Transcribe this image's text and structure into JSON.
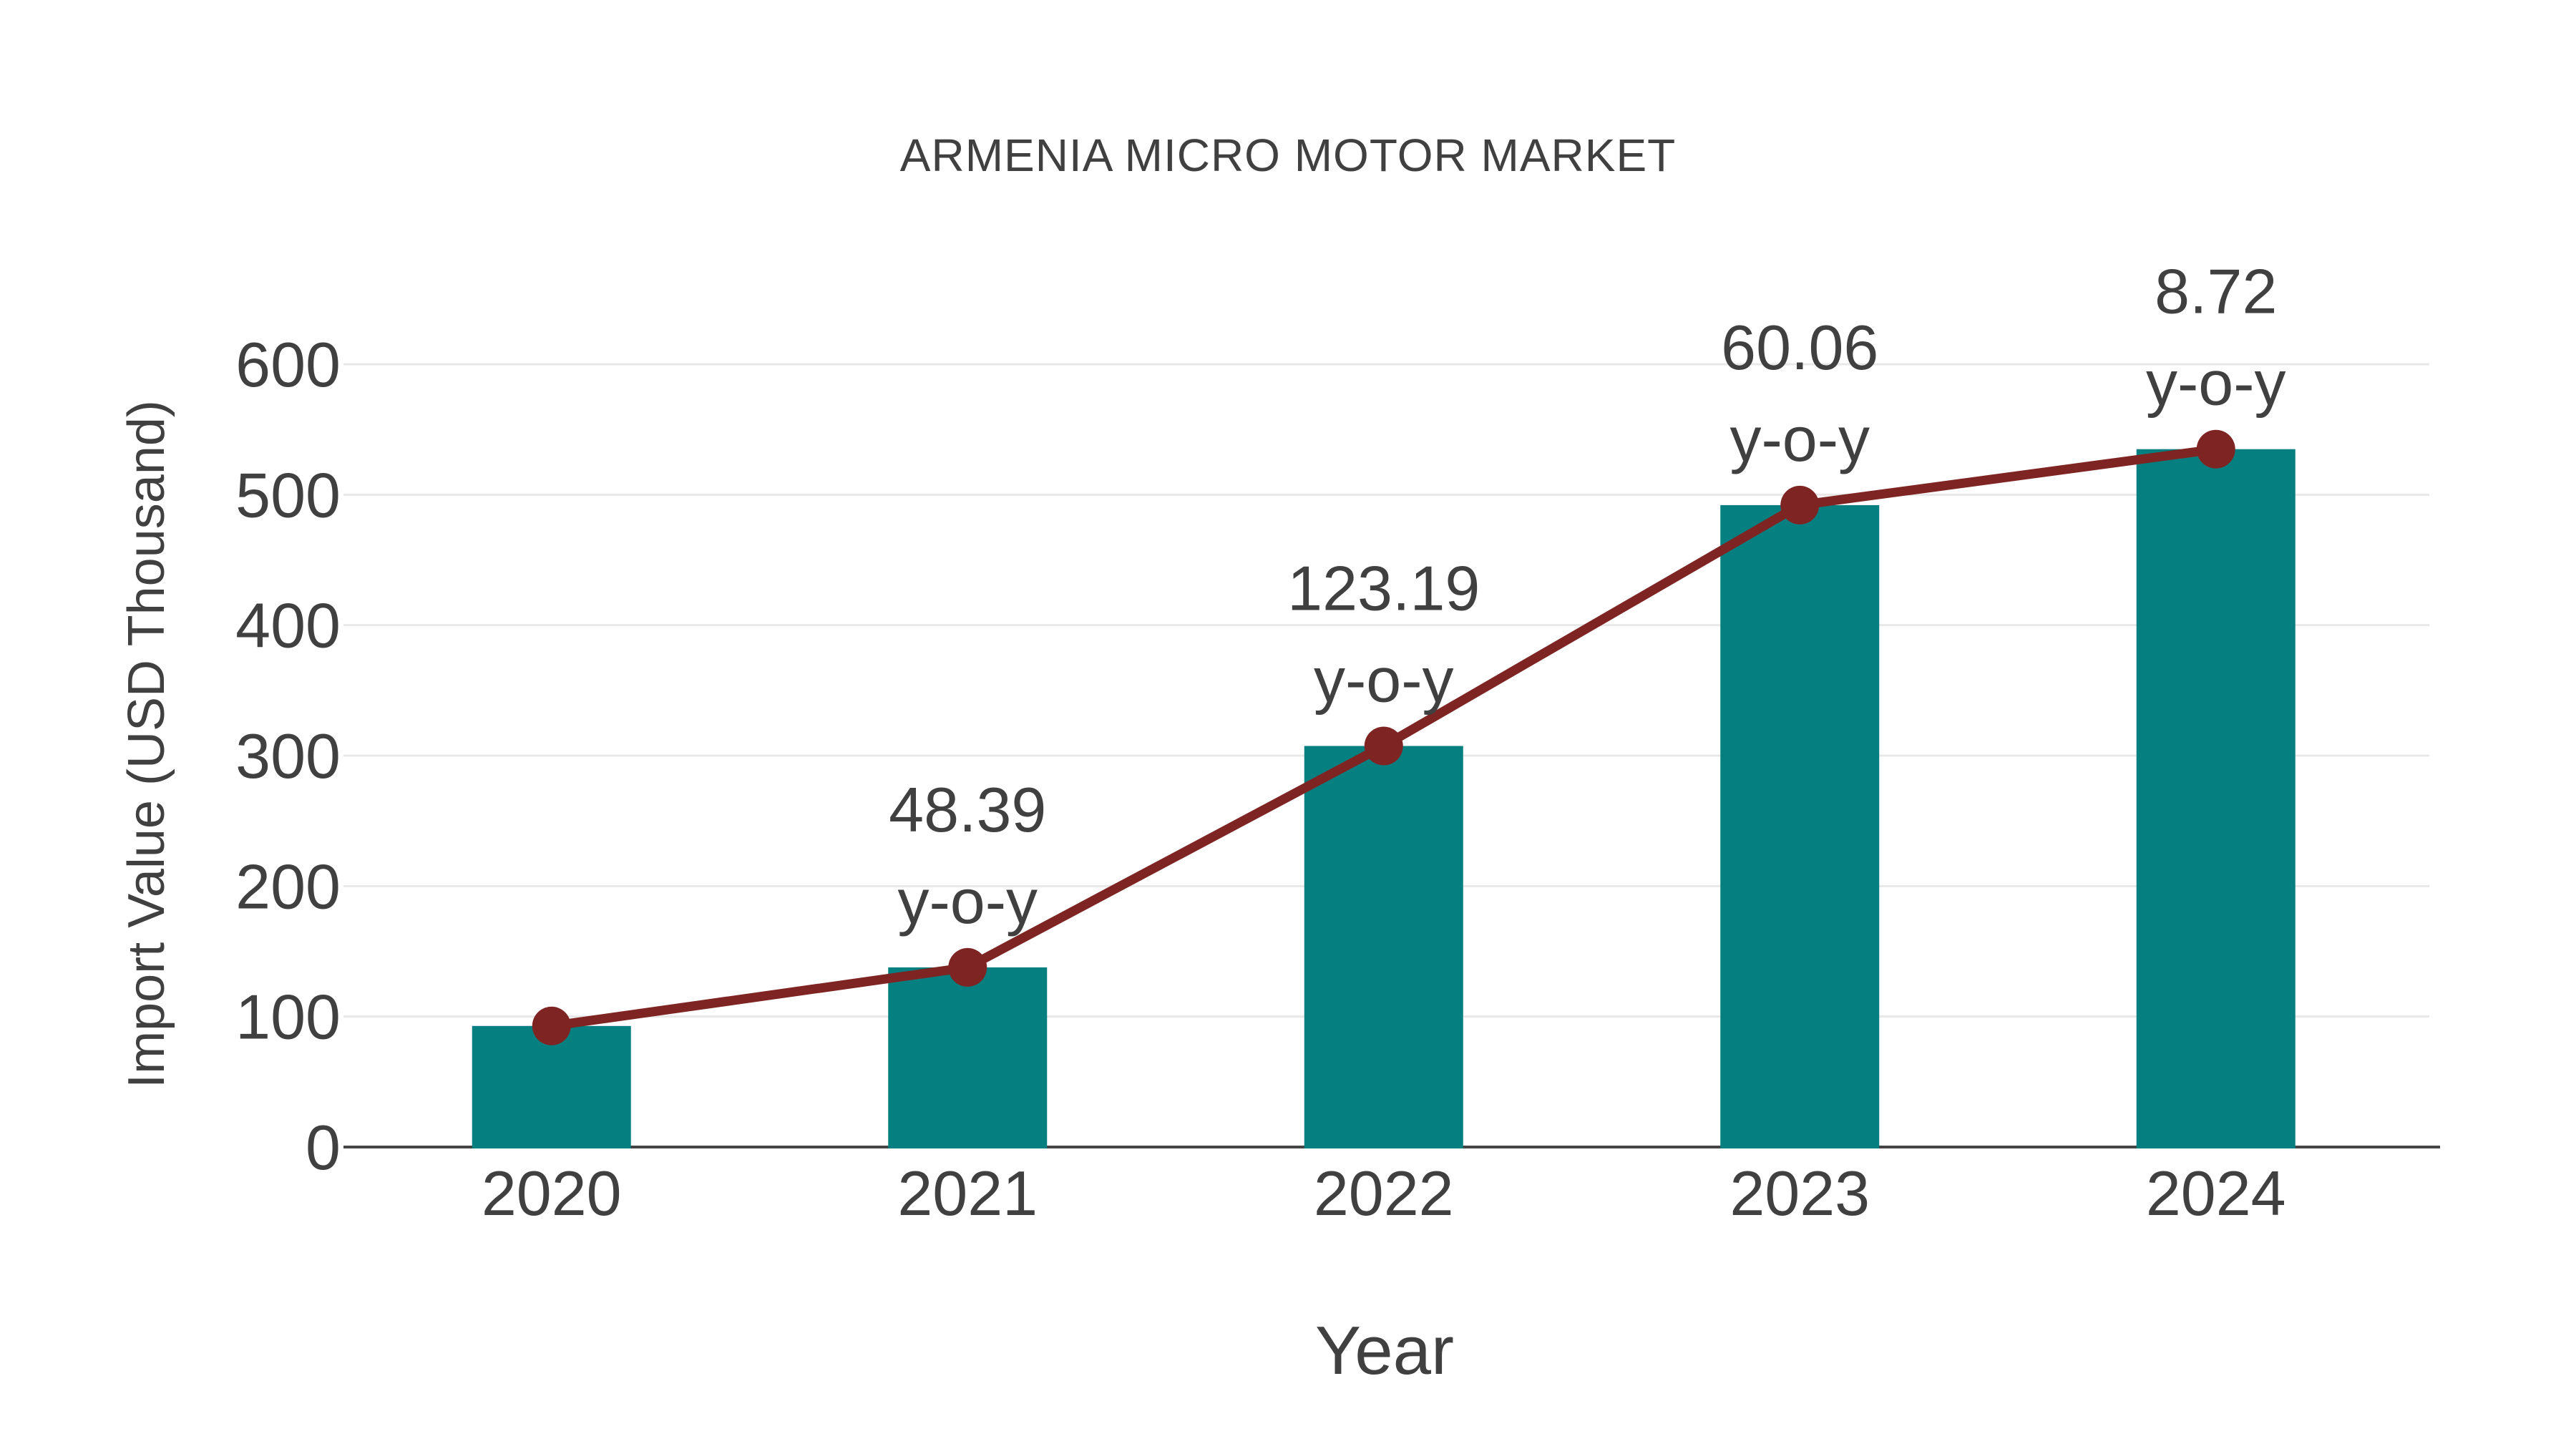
{
  "page": {
    "background": "#FFFFFF"
  },
  "chart_data": {
    "type": "bar",
    "title": "ARMENIA MICRO MOTOR MARKET",
    "xlabel": "Year",
    "ylabel": "Import Value (USD Thousand)",
    "categories": [
      "2020",
      "2021",
      "2022",
      "2023",
      "2024"
    ],
    "series": [
      {
        "name": "import-value-bars",
        "type": "bar",
        "values": [
          92.8,
          137.7,
          307.4,
          492.0,
          534.9
        ],
        "color": "#067F80"
      },
      {
        "name": "import-value-trend",
        "type": "line",
        "values": [
          92.8,
          137.7,
          307.4,
          492.0,
          534.9
        ],
        "color": "#7E2423"
      }
    ],
    "yoy_percent": [
      null,
      "48.39",
      "123.19",
      "60.06",
      "8.72"
    ],
    "yoy_label": "y-o-y",
    "yticks": [
      0,
      100,
      200,
      300,
      400,
      500,
      600
    ],
    "ylim": [
      0,
      600
    ],
    "grid": true,
    "legend_position": "none",
    "text_color": "#404040",
    "grid_color": "#E8E8E8",
    "axis_color": "#444444"
  }
}
